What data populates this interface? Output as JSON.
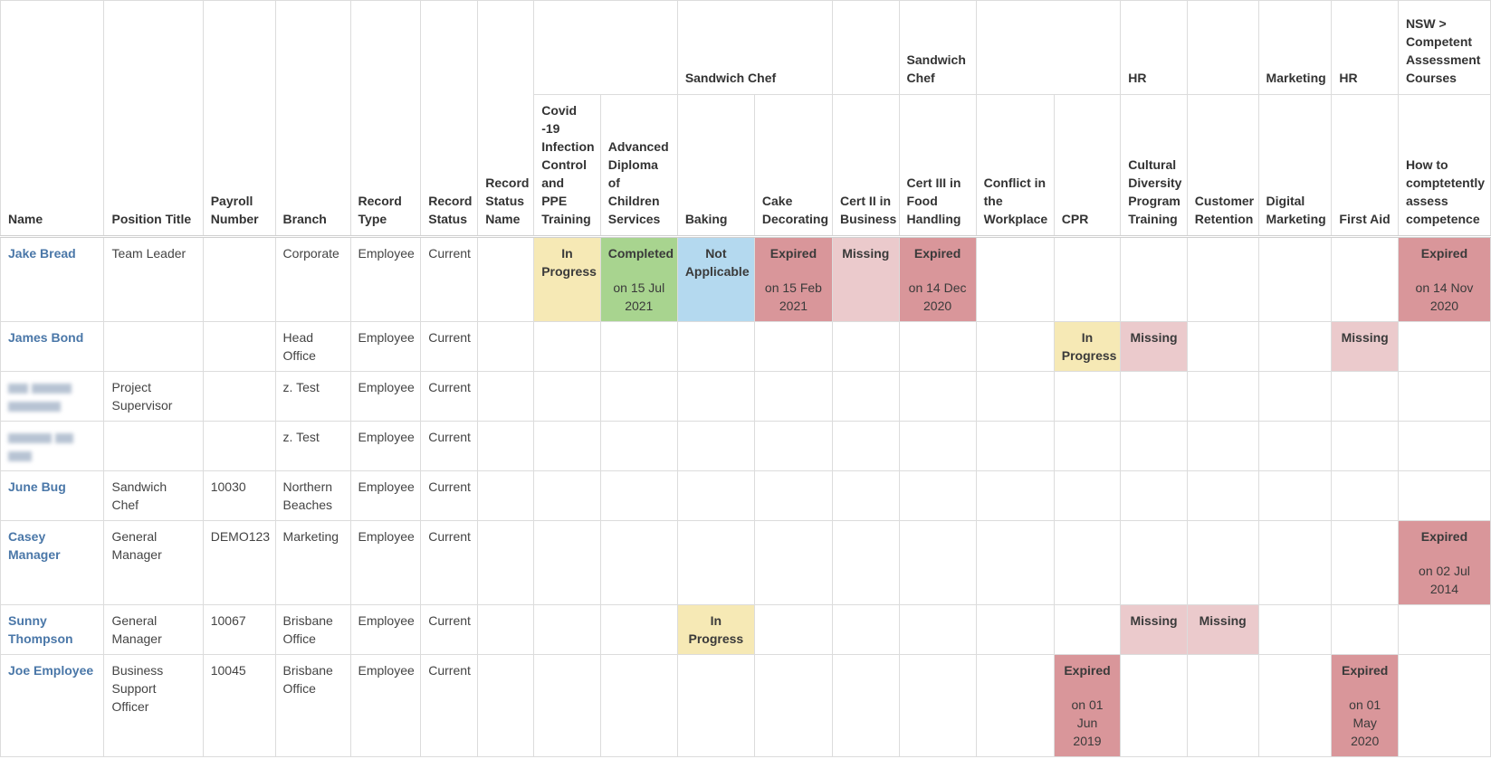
{
  "columns": {
    "name": "Name",
    "position": "Position Title",
    "payroll": "Payroll Number",
    "branch": "Branch",
    "record_type": "Record Type",
    "record_status": "Record Status",
    "record_status_name": "Record Status Name"
  },
  "groups": {
    "sandwich_chef_1": "Sandwich Chef",
    "sandwich_chef_2": "Sandwich Chef",
    "hr_1": "HR",
    "marketing": "Marketing",
    "hr_2": "HR",
    "nsw": "NSW > Competent Assessment Courses"
  },
  "courses": {
    "covid": "Covid -19 Infection Control and PPE Training",
    "diploma": "Advanced Diploma of Children Services",
    "baking": "Baking",
    "cake": "Cake Decorating",
    "cert2": "Cert II in Business",
    "cert3": "Cert III in Food Handling",
    "conflict": "Conflict in the Workplace",
    "cpr": "CPR",
    "cultural": "Cultural Diversity Program Training",
    "customer": "Customer Retention",
    "digital": "Digital Marketing",
    "firstaid": "First Aid",
    "assess": "How to comptetently assess competence"
  },
  "statuses": {
    "in_progress": "In Progress",
    "completed": "Completed",
    "not_applicable": "Not Applicable",
    "expired": "Expired",
    "missing": "Missing"
  },
  "status_colors": {
    "in_progress": "#f6e9b5",
    "completed": "#a8d48f",
    "not_applicable": "#b4d9ef",
    "expired": "#d9969a",
    "missing": "#ebcacc"
  },
  "rows": [
    {
      "name": "Jake Bread",
      "position": "Team Leader",
      "payroll": "",
      "branch": "Corporate",
      "record_type": "Employee",
      "record_status": "Current",
      "dates": {
        "diploma": "on 15 Jul 2021",
        "cake": "on 15 Feb 2021",
        "cert3": "on 14 Dec 2020",
        "assess": "on 14 Nov 2020"
      }
    },
    {
      "name": "James Bond",
      "position": "",
      "payroll": "",
      "branch": "Head Office",
      "record_type": "Employee",
      "record_status": "Current"
    },
    {
      "name": "",
      "position": "Project Supervisor",
      "payroll": "",
      "branch": "z. Test",
      "record_type": "Employee",
      "record_status": "Current"
    },
    {
      "name": "",
      "position": "",
      "payroll": "",
      "branch": "z. Test",
      "record_type": "Employee",
      "record_status": "Current"
    },
    {
      "name": "June Bug",
      "position": "Sandwich Chef",
      "payroll": "10030",
      "branch": "Northern Beaches",
      "record_type": "Employee",
      "record_status": "Current"
    },
    {
      "name": "Casey Manager",
      "position": "General Manager",
      "payroll": "DEMO123",
      "branch": "Marketing",
      "record_type": "Employee",
      "record_status": "Current",
      "dates": {
        "assess": "on 02 Jul 2014"
      }
    },
    {
      "name": "Sunny Thompson",
      "position": "General Manager",
      "payroll": "10067",
      "branch": "Brisbane Office",
      "record_type": "Employee",
      "record_status": "Current"
    },
    {
      "name": "Joe Employee",
      "position": "Business Support Officer",
      "payroll": "10045",
      "branch": "Brisbane Office",
      "record_type": "Employee",
      "record_status": "Current",
      "dates": {
        "cpr": "on 01 Jun 2019",
        "firstaid": "on 01 May 2020"
      }
    }
  ]
}
